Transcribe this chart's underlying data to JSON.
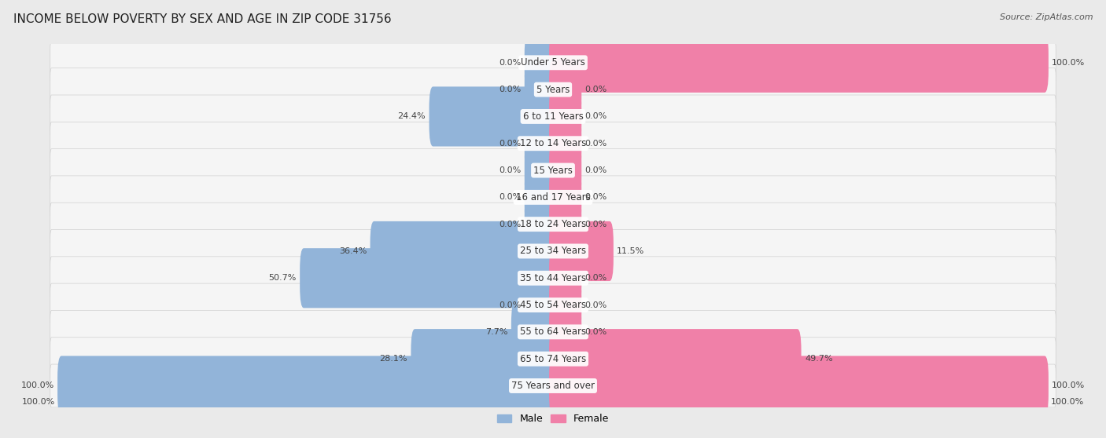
{
  "title": "INCOME BELOW POVERTY BY SEX AND AGE IN ZIP CODE 31756",
  "source": "Source: ZipAtlas.com",
  "categories": [
    "Under 5 Years",
    "5 Years",
    "6 to 11 Years",
    "12 to 14 Years",
    "15 Years",
    "16 and 17 Years",
    "18 to 24 Years",
    "25 to 34 Years",
    "35 to 44 Years",
    "45 to 54 Years",
    "55 to 64 Years",
    "65 to 74 Years",
    "75 Years and over"
  ],
  "male_values": [
    0.0,
    0.0,
    24.4,
    0.0,
    0.0,
    0.0,
    0.0,
    36.4,
    50.7,
    0.0,
    7.7,
    28.1,
    100.0
  ],
  "female_values": [
    100.0,
    0.0,
    0.0,
    0.0,
    0.0,
    0.0,
    0.0,
    11.5,
    0.0,
    0.0,
    0.0,
    49.7,
    100.0
  ],
  "male_color": "#92b4d9",
  "female_color": "#f080a8",
  "male_label": "Male",
  "female_label": "Female",
  "bg_color": "#eaeaea",
  "row_bg_color": "#f5f5f5",
  "max_value": 100.0,
  "stub_value": 5.0,
  "bar_height": 0.62,
  "title_fontsize": 11,
  "label_fontsize": 8.5,
  "value_fontsize": 8.0,
  "axis_label_fontsize": 8,
  "legend_fontsize": 9,
  "source_fontsize": 8
}
